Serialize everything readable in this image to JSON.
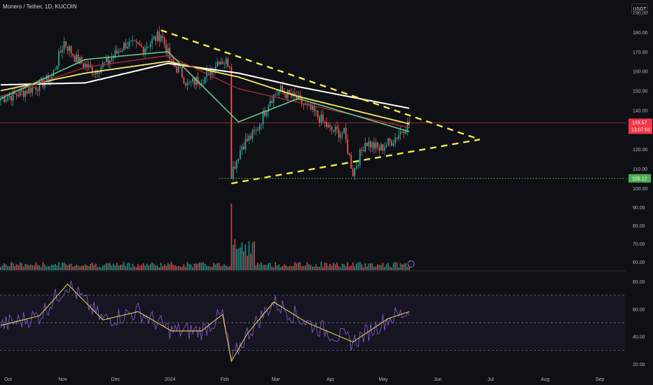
{
  "header": {
    "symbol": "Monero / Tether, 1D, KUCOIN",
    "currency": "USDT"
  },
  "colors": {
    "background": "#0f1015",
    "up": "#26a69a",
    "down": "#ef5350",
    "ema_green": "#69c488",
    "ema_red": "#b52b38",
    "ema_yellow": "#f7e96a",
    "ema_white": "#ffffff",
    "trendline": "#f2e94e",
    "support": "#4caf50",
    "rsi": "#7e57c2",
    "rsi_ma": "#d9cf55"
  },
  "chart_data": [
    {
      "type": "candlestick",
      "name": "price",
      "ylim": [
        100,
        190
      ],
      "y_ticks": [
        "190.00",
        "180.00",
        "170.00",
        "160.00",
        "150.00",
        "140.00",
        "130.00",
        "120.00",
        "110.00",
        "100.00"
      ],
      "x_ticks": [
        "Oct",
        "Nov",
        "Dec",
        "2024",
        "Feb",
        "Mar",
        "Apr",
        "May",
        "Jun",
        "Jul",
        "Aug",
        "Sep"
      ],
      "x_range": [
        "2023-09-28",
        "2024-09-30"
      ],
      "last_price": 133.57,
      "last_price_label": "133.57",
      "countdown_label": "13:07:03",
      "support_level": 105.12,
      "support_label": "105.12",
      "close_key_points": [
        {
          "date": "2023-09-28",
          "close": 146
        },
        {
          "date": "2023-10-10",
          "close": 149
        },
        {
          "date": "2023-10-20",
          "close": 153
        },
        {
          "date": "2023-10-27",
          "close": 157
        },
        {
          "date": "2023-11-03",
          "close": 175
        },
        {
          "date": "2023-11-10",
          "close": 166
        },
        {
          "date": "2023-11-20",
          "close": 160
        },
        {
          "date": "2023-11-28",
          "close": 165
        },
        {
          "date": "2023-12-08",
          "close": 174
        },
        {
          "date": "2023-12-18",
          "close": 172
        },
        {
          "date": "2023-12-28",
          "close": 179
        },
        {
          "date": "2024-01-03",
          "close": 164
        },
        {
          "date": "2024-01-08",
          "close": 160
        },
        {
          "date": "2024-01-12",
          "close": 153
        },
        {
          "date": "2024-01-22",
          "close": 157
        },
        {
          "date": "2024-01-30",
          "close": 166
        },
        {
          "date": "2024-02-05",
          "close": 164
        },
        {
          "date": "2024-02-06",
          "close": 108
        },
        {
          "date": "2024-02-12",
          "close": 122
        },
        {
          "date": "2024-02-20",
          "close": 129
        },
        {
          "date": "2024-02-28",
          "close": 146
        },
        {
          "date": "2024-03-05",
          "close": 150
        },
        {
          "date": "2024-03-15",
          "close": 145
        },
        {
          "date": "2024-03-25",
          "close": 138
        },
        {
          "date": "2024-04-02",
          "close": 130
        },
        {
          "date": "2024-04-10",
          "close": 128
        },
        {
          "date": "2024-04-15",
          "close": 108
        },
        {
          "date": "2024-04-22",
          "close": 124
        },
        {
          "date": "2024-04-30",
          "close": 120
        },
        {
          "date": "2024-05-08",
          "close": 125
        },
        {
          "date": "2024-05-14",
          "close": 131
        },
        {
          "date": "2024-05-17",
          "close": 133.57
        }
      ],
      "ema_key_points": {
        "ema_white": [
          {
            "date": "2023-09-28",
            "value": 153
          },
          {
            "date": "2023-11-15",
            "value": 154
          },
          {
            "date": "2024-01-01",
            "value": 164
          },
          {
            "date": "2024-02-10",
            "value": 159
          },
          {
            "date": "2024-03-15",
            "value": 152
          },
          {
            "date": "2024-05-17",
            "value": 141
          }
        ],
        "ema_yellow": [
          {
            "date": "2023-09-28",
            "value": 150
          },
          {
            "date": "2023-11-15",
            "value": 159
          },
          {
            "date": "2024-01-01",
            "value": 165
          },
          {
            "date": "2024-02-10",
            "value": 157
          },
          {
            "date": "2024-03-15",
            "value": 147
          },
          {
            "date": "2024-05-17",
            "value": 133
          }
        ],
        "ema_red": [
          {
            "date": "2023-09-28",
            "value": 147
          },
          {
            "date": "2023-11-15",
            "value": 162
          },
          {
            "date": "2024-01-01",
            "value": 168
          },
          {
            "date": "2024-02-10",
            "value": 151
          },
          {
            "date": "2024-03-15",
            "value": 144
          },
          {
            "date": "2024-05-17",
            "value": 131
          }
        ],
        "ema_green": [
          {
            "date": "2023-09-28",
            "value": 146
          },
          {
            "date": "2023-11-15",
            "value": 166
          },
          {
            "date": "2024-01-01",
            "value": 170
          },
          {
            "date": "2024-02-10",
            "value": 134
          },
          {
            "date": "2024-03-15",
            "value": 146
          },
          {
            "date": "2024-05-17",
            "value": 129
          }
        ]
      },
      "trendlines": [
        {
          "name": "upper",
          "from": {
            "date": "2023-12-28",
            "value": 181
          },
          "to": {
            "date": "2024-06-26",
            "value": 125
          }
        },
        {
          "name": "lower",
          "from": {
            "date": "2024-02-06",
            "value": 102.5
          },
          "to": {
            "date": "2024-06-26",
            "value": 125
          }
        }
      ]
    },
    {
      "type": "bar",
      "name": "volume",
      "y_ticks": [
        "90.00",
        "80.00",
        "70.00",
        "60.00"
      ],
      "spike_date": "2024-02-06"
    },
    {
      "type": "line",
      "name": "rsi",
      "ylim": [
        15,
        85
      ],
      "y_ticks": [
        "80.00",
        "60.00",
        "40.00",
        "20.00"
      ],
      "bands": [
        70,
        50,
        30
      ],
      "key_points": [
        {
          "date": "2023-09-28",
          "value": 48
        },
        {
          "date": "2023-10-20",
          "value": 55
        },
        {
          "date": "2023-11-05",
          "value": 78
        },
        {
          "date": "2023-11-25",
          "value": 52
        },
        {
          "date": "2023-12-15",
          "value": 58
        },
        {
          "date": "2024-01-03",
          "value": 44
        },
        {
          "date": "2024-01-20",
          "value": 44
        },
        {
          "date": "2024-02-01",
          "value": 56
        },
        {
          "date": "2024-02-06",
          "value": 22
        },
        {
          "date": "2024-02-15",
          "value": 42
        },
        {
          "date": "2024-03-01",
          "value": 65
        },
        {
          "date": "2024-03-20",
          "value": 50
        },
        {
          "date": "2024-04-15",
          "value": 36
        },
        {
          "date": "2024-05-05",
          "value": 53
        },
        {
          "date": "2024-05-17",
          "value": 58
        }
      ]
    }
  ]
}
